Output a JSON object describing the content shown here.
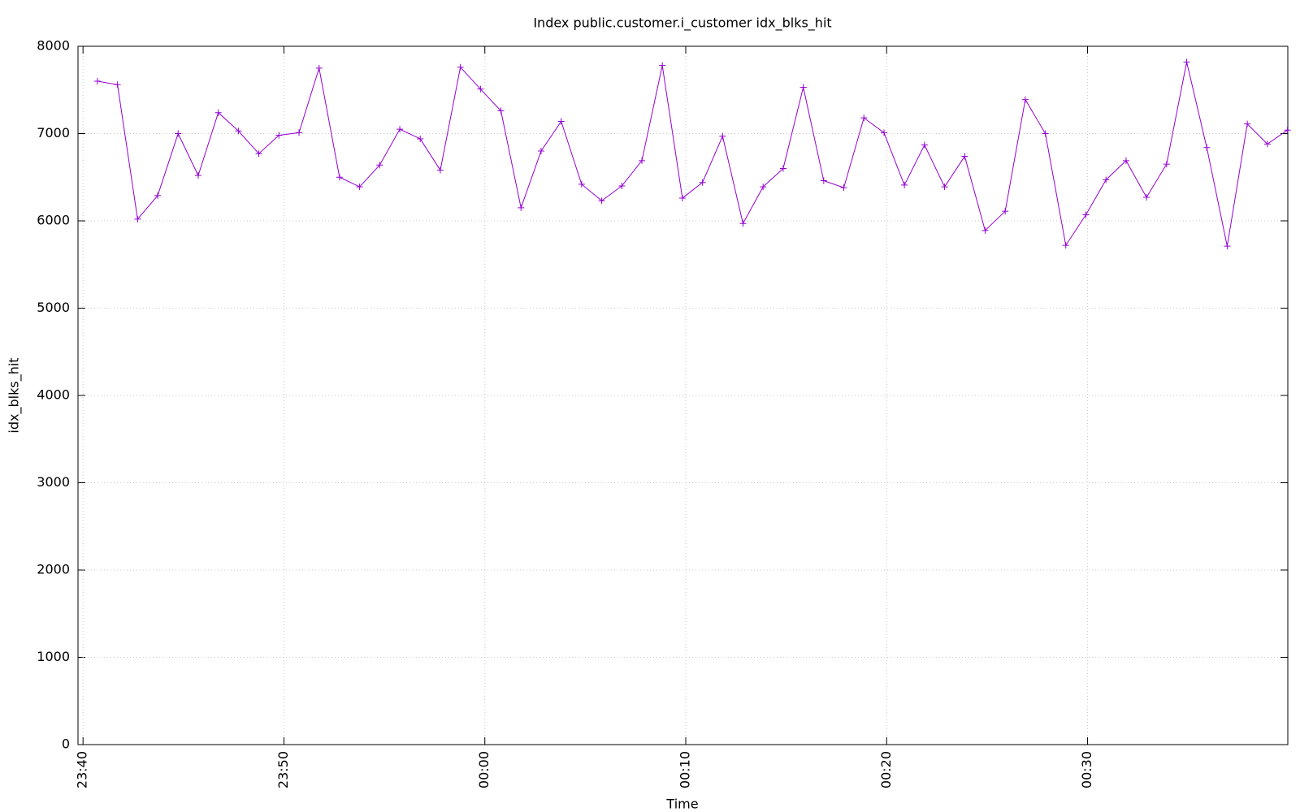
{
  "chart_data": {
    "type": "line",
    "title": "Index public.customer.i_customer idx_blks_hit",
    "x_label": "Time",
    "y_label": "idx_blks_hit",
    "x": [
      "23:40:43",
      "23:41:43",
      "23:42:43",
      "23:43:43",
      "23:44:44",
      "23:45:44",
      "23:46:44",
      "23:47:44",
      "23:48:45",
      "23:49:45",
      "23:50:45",
      "23:51:45",
      "23:52:46",
      "23:53:46",
      "23:54:46",
      "23:55:46",
      "23:56:47",
      "23:57:47",
      "23:58:47",
      "23:59:47",
      "00:00:48",
      "00:01:48",
      "00:02:48",
      "00:03:48",
      "00:04:49",
      "00:05:49",
      "00:06:49",
      "00:07:49",
      "00:08:50",
      "00:09:50",
      "00:10:50",
      "00:11:50",
      "00:12:51",
      "00:13:51",
      "00:14:51",
      "00:15:51",
      "00:16:52",
      "00:17:52",
      "00:18:52",
      "00:19:52",
      "00:20:53",
      "00:21:53",
      "00:22:53",
      "00:23:53",
      "00:24:54",
      "00:25:54",
      "00:26:54",
      "00:27:54",
      "00:28:55",
      "00:29:55",
      "00:30:55",
      "00:31:55",
      "00:32:56",
      "00:33:56",
      "00:34:56",
      "00:35:56",
      "00:36:57",
      "00:37:57",
      "00:38:57",
      "00:39:57"
    ],
    "series": [
      {
        "name": "idx_blks_hit",
        "color": "#9400d3",
        "values": [
          7600,
          7560,
          6020,
          6290,
          7000,
          6520,
          7240,
          7030,
          6770,
          6980,
          7010,
          7750,
          6500,
          6390,
          6640,
          7050,
          6940,
          6580,
          7760,
          7510,
          7260,
          6150,
          6800,
          7140,
          6420,
          6230,
          6400,
          6690,
          7780,
          6260,
          6440,
          6970,
          5970,
          6390,
          6600,
          7530,
          6460,
          6380,
          7180,
          7010,
          6410,
          6870,
          6390,
          6740,
          5890,
          6110,
          7390,
          7000,
          5720,
          6070,
          6470,
          6690,
          6270,
          6650,
          7820,
          6840,
          5710,
          7110,
          6880,
          7040
        ]
      }
    ],
    "xlim": [
      "23:39:45",
      "00:39:58"
    ],
    "xticks": [
      "23:40",
      "23:50",
      "00:00",
      "00:10",
      "00:20",
      "00:30"
    ],
    "ylim": [
      0,
      8000
    ],
    "yticks": [
      0,
      1000,
      2000,
      3000,
      4000,
      5000,
      6000,
      7000,
      8000
    ],
    "grid": true
  }
}
